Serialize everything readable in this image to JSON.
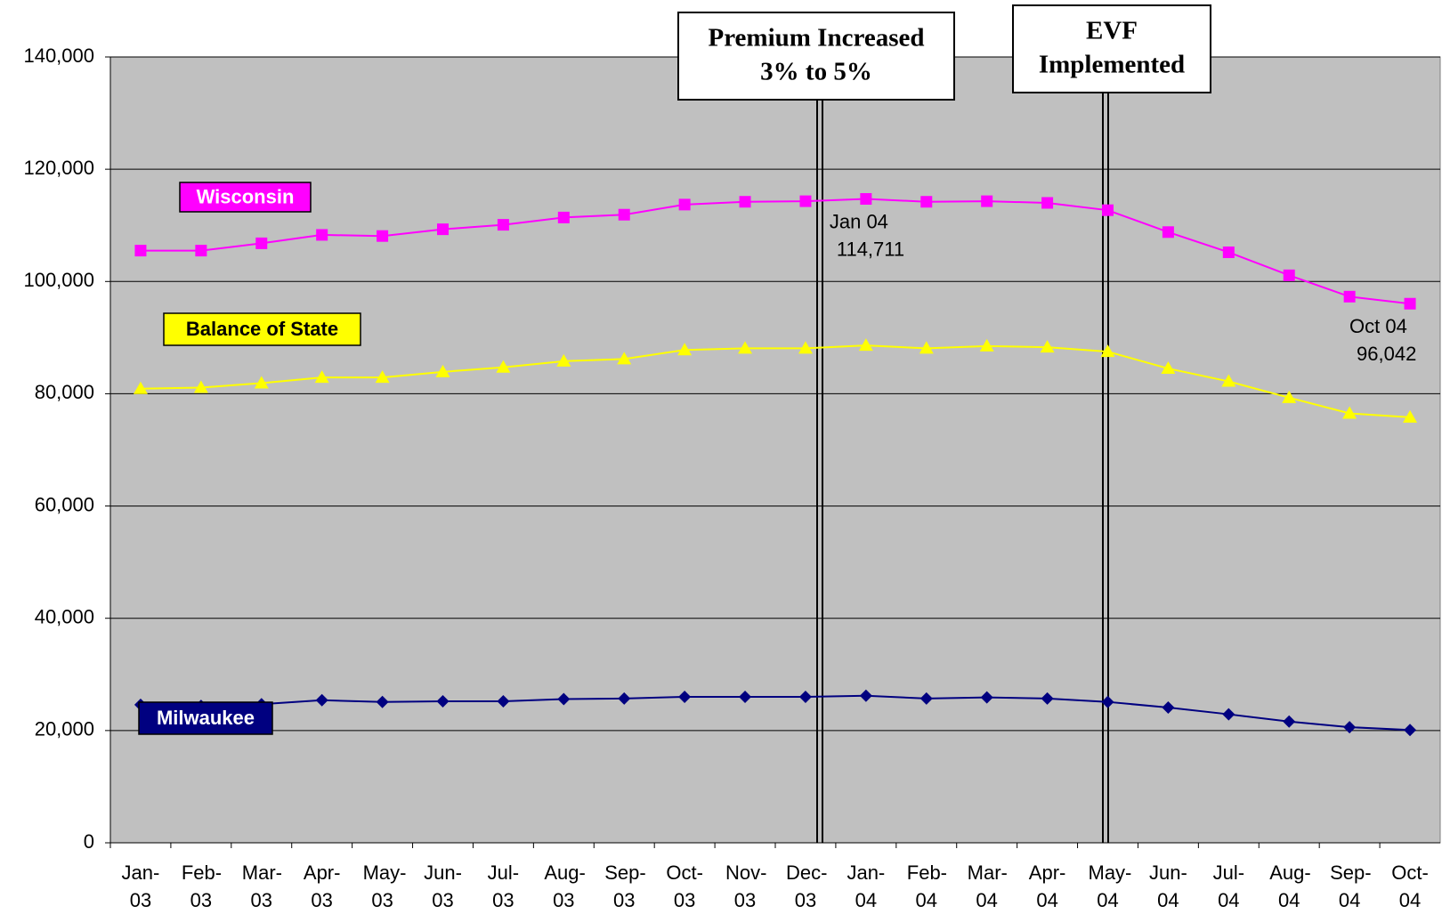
{
  "chart_data": {
    "type": "line",
    "categories": [
      "Jan-03",
      "Feb-03",
      "Mar-03",
      "Apr-03",
      "May-03",
      "Jun-03",
      "Jul-03",
      "Aug-03",
      "Sep-03",
      "Oct-03",
      "Nov-03",
      "Dec-03",
      "Jan-04",
      "Feb-04",
      "Mar-04",
      "Apr-04",
      "May-04",
      "Jun-04",
      "Jul-04",
      "Aug-04",
      "Sep-04",
      "Oct-04"
    ],
    "series": [
      {
        "name": "Wisconsin",
        "color": "#ff00ff",
        "marker": "square",
        "values": [
          105500,
          105500,
          106800,
          108300,
          108100,
          109300,
          110100,
          111400,
          111900,
          113700,
          114200,
          114300,
          114711,
          114200,
          114300,
          114000,
          112700,
          108800,
          105200,
          101100,
          97300,
          96042
        ],
        "point_labels": [
          null,
          null,
          null,
          null,
          null,
          null,
          null,
          null,
          null,
          null,
          null,
          null,
          "Jan 04",
          null,
          null,
          null,
          null,
          null,
          null,
          null,
          null,
          "Oct 04"
        ],
        "value_labels": [
          null,
          null,
          null,
          null,
          null,
          null,
          null,
          null,
          null,
          null,
          null,
          null,
          "114,711",
          null,
          null,
          null,
          null,
          null,
          null,
          null,
          null,
          "96,042"
        ]
      },
      {
        "name": "Balance of State",
        "color": "#ffff00",
        "marker": "triangle",
        "values": [
          80900,
          81100,
          81900,
          82900,
          82900,
          83900,
          84700,
          85800,
          86200,
          87800,
          88100,
          88100,
          88600,
          88100,
          88500,
          88300,
          87500,
          84500,
          82200,
          79300,
          76500,
          75800
        ]
      },
      {
        "name": "Milwaukee",
        "color": "#000080",
        "marker": "diamond",
        "values": [
          24600,
          24400,
          24700,
          25400,
          25100,
          25200,
          25200,
          25600,
          25700,
          26000,
          26000,
          26000,
          26200,
          25700,
          25900,
          25700,
          25100,
          24100,
          22900,
          21600,
          20600,
          20100
        ]
      }
    ],
    "events": [
      {
        "lines": [
          "Premium Increased",
          "3% to 5%"
        ]
      },
      {
        "lines": [
          "EVF",
          "Implemented"
        ]
      }
    ],
    "ylim": [
      0,
      140000
    ],
    "yticks": [
      0,
      {
        "value": 20000,
        "label": "20,000"
      },
      {
        "value": 40000,
        "label": "40,000"
      },
      {
        "value": 60000,
        "label": "60,000"
      },
      {
        "value": 80000,
        "label": "80,000"
      },
      {
        "value": 100000,
        "label": "100,000"
      },
      {
        "value": 120000,
        "label": "120,000"
      },
      {
        "value": 140000,
        "label": "140,000"
      }
    ],
    "grid": true,
    "background": "#c0c0c0"
  }
}
